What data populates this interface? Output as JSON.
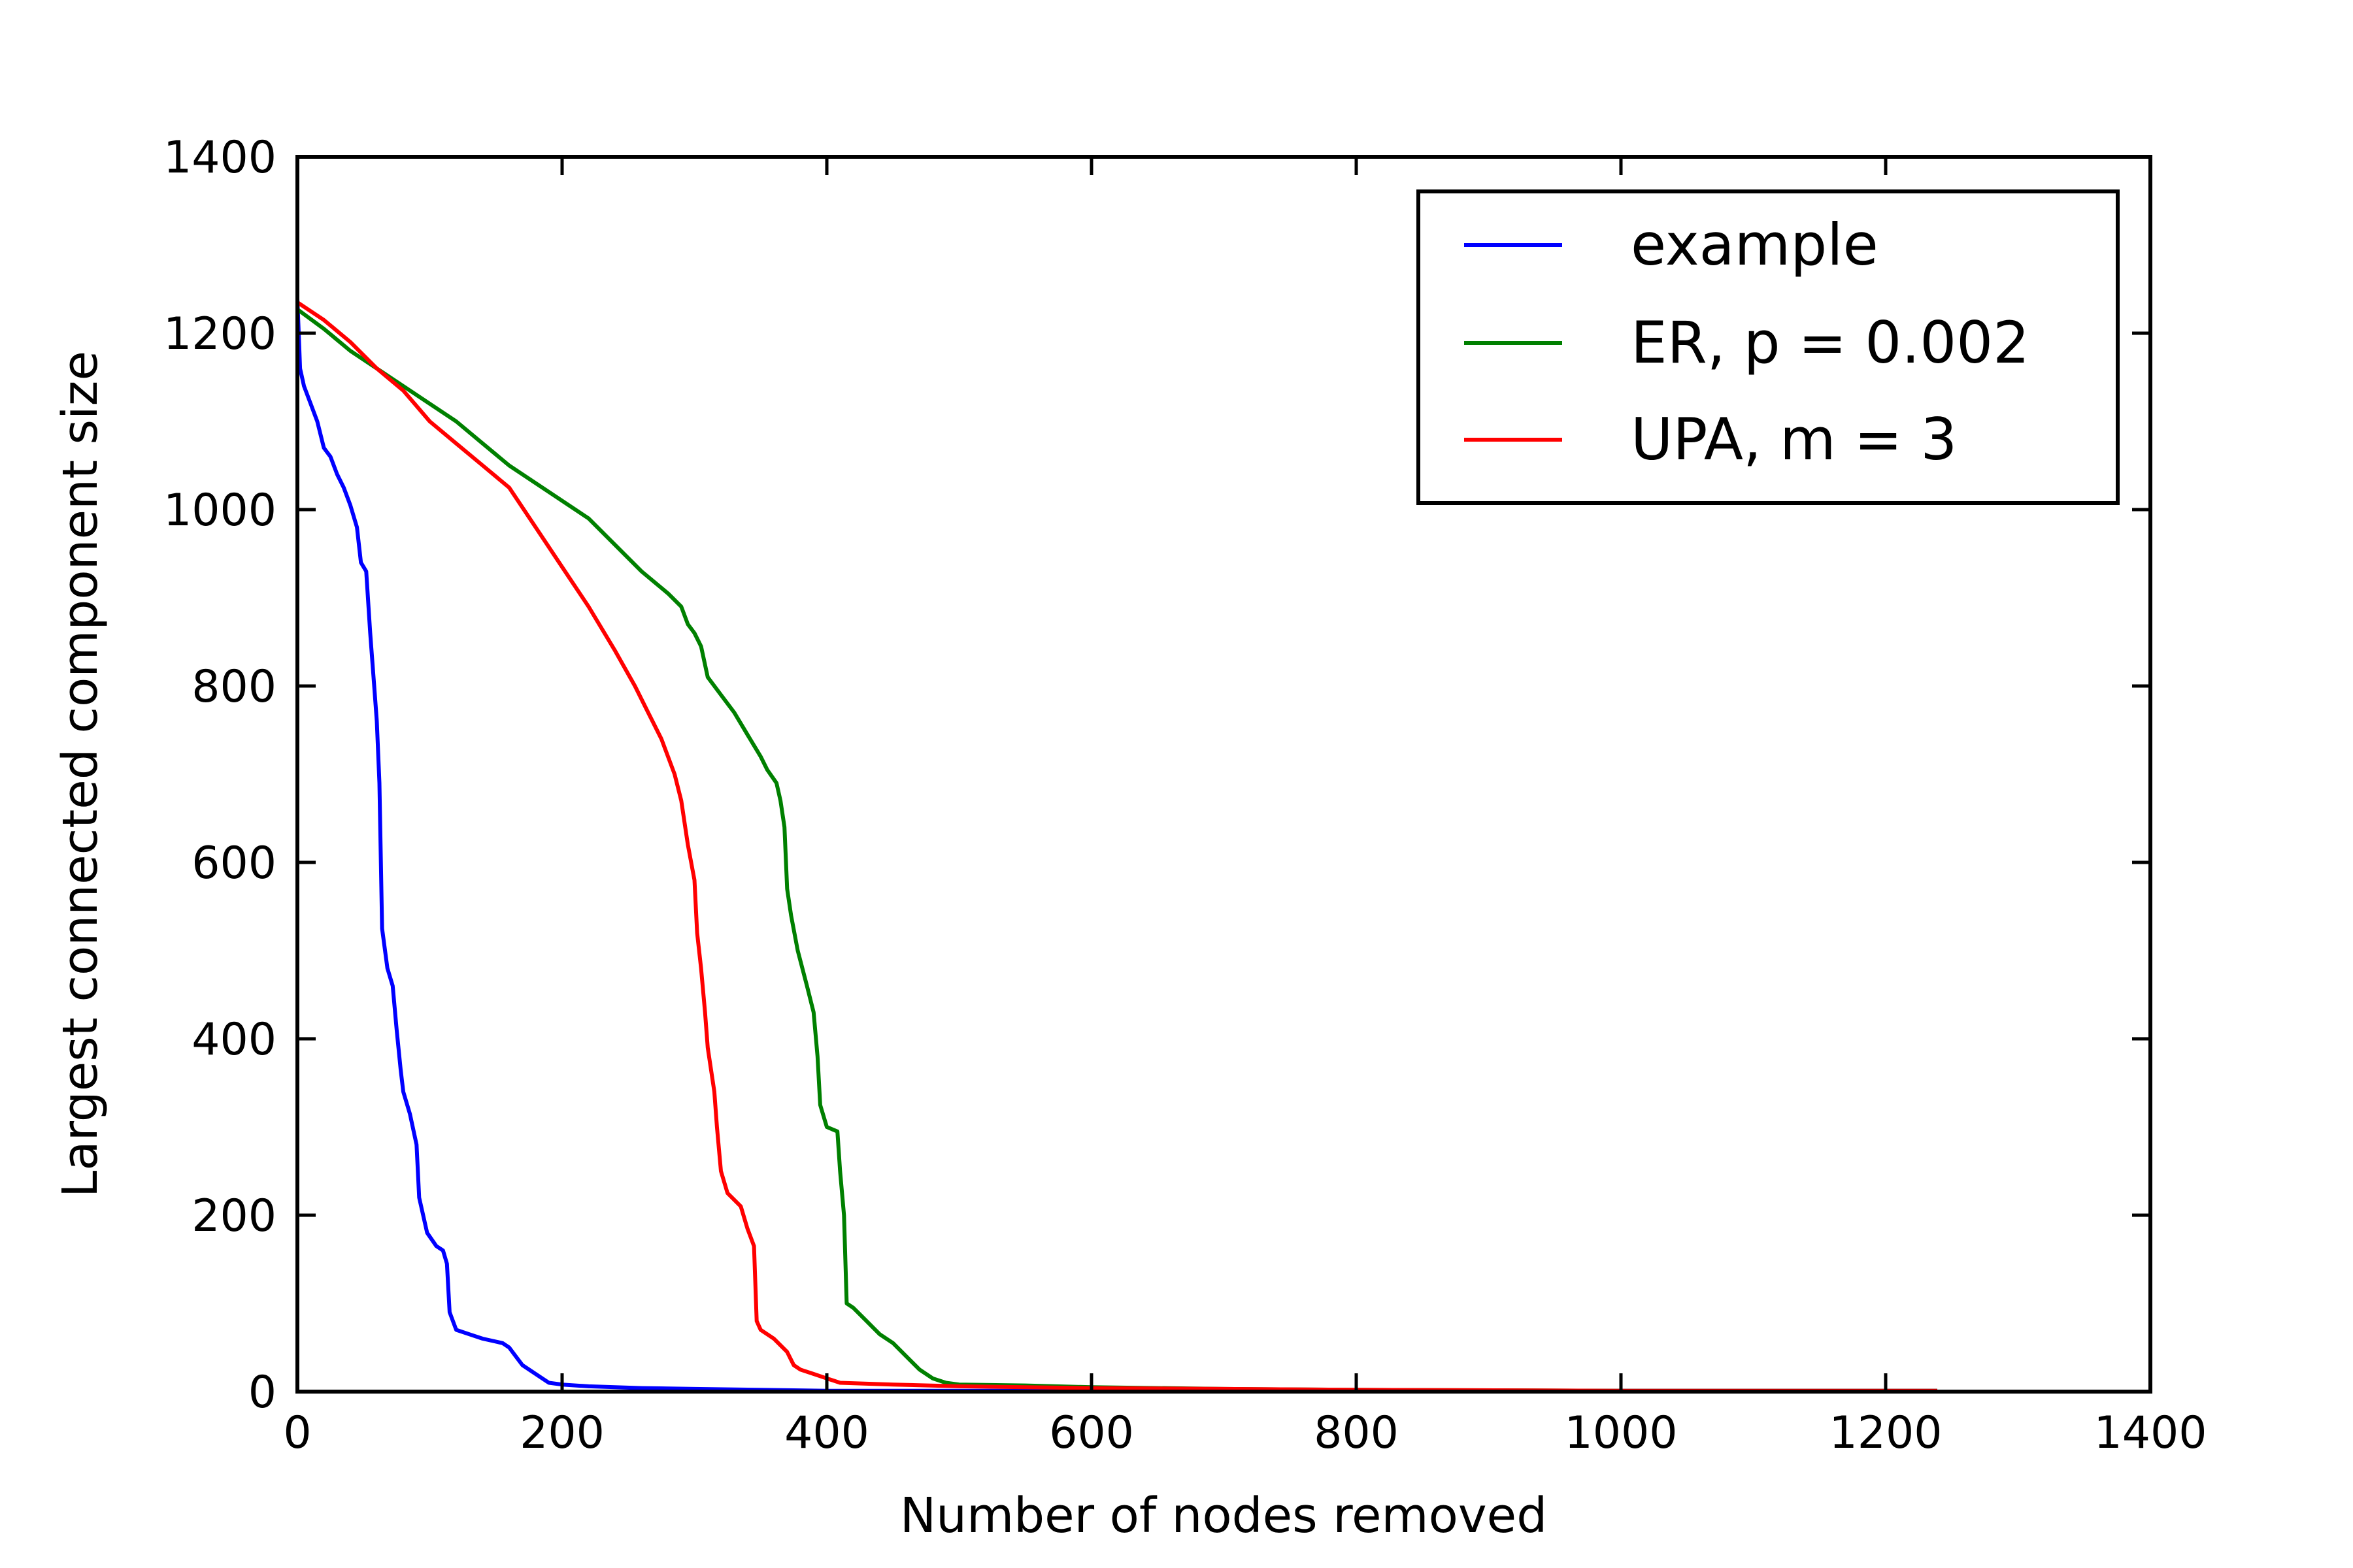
{
  "chart_data": {
    "type": "line",
    "xlabel": "Number of nodes removed",
    "ylabel": "Largest connected component size",
    "xlim": [
      0,
      1400
    ],
    "ylim": [
      0,
      1400
    ],
    "xticks": [
      "0",
      "200",
      "400",
      "600",
      "800",
      "1000",
      "1200",
      "1400"
    ],
    "yticks": [
      "0",
      "200",
      "400",
      "600",
      "800",
      "1000",
      "1200",
      "1400"
    ],
    "grid": false,
    "legend_position": "top-right",
    "series": [
      {
        "name": "example",
        "color": "#0000ff",
        "points": [
          [
            0,
            1239
          ],
          [
            2,
            1160
          ],
          [
            5,
            1140
          ],
          [
            10,
            1120
          ],
          [
            15,
            1100
          ],
          [
            20,
            1070
          ],
          [
            25,
            1060
          ],
          [
            30,
            1040
          ],
          [
            35,
            1025
          ],
          [
            40,
            1005
          ],
          [
            45,
            980
          ],
          [
            48,
            940
          ],
          [
            52,
            930
          ],
          [
            55,
            860
          ],
          [
            58,
            800
          ],
          [
            60,
            760
          ],
          [
            62,
            690
          ],
          [
            64,
            525
          ],
          [
            68,
            480
          ],
          [
            72,
            460
          ],
          [
            75,
            410
          ],
          [
            78,
            365
          ],
          [
            80,
            340
          ],
          [
            85,
            315
          ],
          [
            90,
            280
          ],
          [
            92,
            220
          ],
          [
            98,
            180
          ],
          [
            105,
            165
          ],
          [
            110,
            160
          ],
          [
            113,
            145
          ],
          [
            115,
            90
          ],
          [
            120,
            70
          ],
          [
            130,
            65
          ],
          [
            140,
            60
          ],
          [
            155,
            55
          ],
          [
            160,
            50
          ],
          [
            165,
            40
          ],
          [
            170,
            30
          ],
          [
            175,
            25
          ],
          [
            180,
            20
          ],
          [
            185,
            15
          ],
          [
            190,
            10
          ],
          [
            200,
            8
          ],
          [
            220,
            6
          ],
          [
            240,
            5
          ],
          [
            260,
            4
          ],
          [
            300,
            3
          ],
          [
            350,
            2
          ],
          [
            400,
            1
          ],
          [
            450,
            1
          ],
          [
            500,
            1
          ],
          [
            1239,
            1
          ]
        ]
      },
      {
        "name": "ER, p = 0.002",
        "color": "#008000",
        "points": [
          [
            0,
            1227
          ],
          [
            20,
            1205
          ],
          [
            40,
            1180
          ],
          [
            60,
            1160
          ],
          [
            80,
            1140
          ],
          [
            100,
            1120
          ],
          [
            120,
            1100
          ],
          [
            140,
            1075
          ],
          [
            160,
            1050
          ],
          [
            180,
            1030
          ],
          [
            200,
            1010
          ],
          [
            220,
            990
          ],
          [
            240,
            960
          ],
          [
            260,
            930
          ],
          [
            280,
            905
          ],
          [
            290,
            890
          ],
          [
            295,
            870
          ],
          [
            300,
            860
          ],
          [
            305,
            845
          ],
          [
            310,
            810
          ],
          [
            320,
            790
          ],
          [
            330,
            770
          ],
          [
            340,
            745
          ],
          [
            350,
            720
          ],
          [
            355,
            705
          ],
          [
            362,
            690
          ],
          [
            365,
            670
          ],
          [
            368,
            640
          ],
          [
            370,
            570
          ],
          [
            373,
            540
          ],
          [
            378,
            500
          ],
          [
            385,
            460
          ],
          [
            390,
            430
          ],
          [
            393,
            380
          ],
          [
            395,
            325
          ],
          [
            400,
            300
          ],
          [
            408,
            295
          ],
          [
            410,
            250
          ],
          [
            413,
            200
          ],
          [
            415,
            100
          ],
          [
            420,
            95
          ],
          [
            430,
            80
          ],
          [
            440,
            65
          ],
          [
            450,
            55
          ],
          [
            460,
            40
          ],
          [
            470,
            25
          ],
          [
            480,
            15
          ],
          [
            490,
            10
          ],
          [
            500,
            8
          ],
          [
            550,
            7
          ],
          [
            600,
            5
          ],
          [
            700,
            3
          ],
          [
            800,
            2
          ],
          [
            1000,
            1
          ],
          [
            1239,
            1
          ]
        ]
      },
      {
        "name": "UPA, m = 3",
        "color": "#ff0000",
        "points": [
          [
            0,
            1235
          ],
          [
            20,
            1215
          ],
          [
            40,
            1190
          ],
          [
            60,
            1160
          ],
          [
            80,
            1135
          ],
          [
            100,
            1100
          ],
          [
            120,
            1075
          ],
          [
            140,
            1050
          ],
          [
            160,
            1025
          ],
          [
            180,
            980
          ],
          [
            200,
            935
          ],
          [
            220,
            890
          ],
          [
            240,
            840
          ],
          [
            255,
            800
          ],
          [
            265,
            770
          ],
          [
            275,
            740
          ],
          [
            285,
            700
          ],
          [
            290,
            670
          ],
          [
            295,
            620
          ],
          [
            300,
            580
          ],
          [
            302,
            520
          ],
          [
            305,
            480
          ],
          [
            308,
            430
          ],
          [
            310,
            390
          ],
          [
            315,
            340
          ],
          [
            317,
            300
          ],
          [
            320,
            250
          ],
          [
            325,
            225
          ],
          [
            335,
            210
          ],
          [
            340,
            185
          ],
          [
            345,
            165
          ],
          [
            347,
            80
          ],
          [
            350,
            70
          ],
          [
            360,
            60
          ],
          [
            370,
            45
          ],
          [
            375,
            30
          ],
          [
            380,
            25
          ],
          [
            390,
            20
          ],
          [
            400,
            15
          ],
          [
            410,
            10
          ],
          [
            450,
            8
          ],
          [
            500,
            6
          ],
          [
            600,
            4
          ],
          [
            700,
            3
          ],
          [
            800,
            2
          ],
          [
            1000,
            1
          ],
          [
            1239,
            1
          ]
        ]
      }
    ]
  }
}
